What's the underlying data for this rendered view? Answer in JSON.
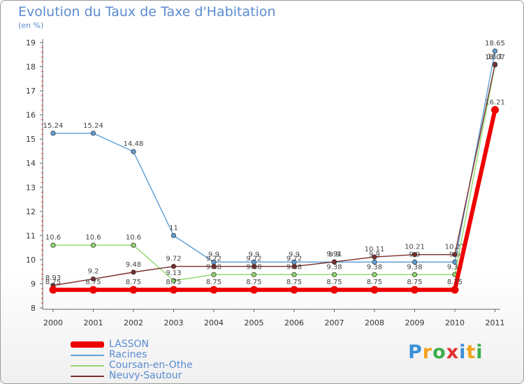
{
  "title": "Evolution du Taux de Taxe d'Habitation",
  "unit": "(en %)",
  "logo": {
    "text": "Proxiti",
    "letters": [
      "P",
      "r",
      "o",
      "x",
      "i",
      "t",
      "i"
    ],
    "colors": [
      "#3c8fd8",
      "#f4a21c",
      "#3cae4a",
      "#e23030",
      "#3c8fd8",
      "#f4a21c",
      "#3cae4a"
    ]
  },
  "chart_data": {
    "type": "line",
    "title": "Evolution du Taux de Taxe d'Habitation",
    "ylabel": "(en %)",
    "xlabel": "",
    "x": [
      "2000",
      "2001",
      "2002",
      "2003",
      "2004",
      "2005",
      "2006",
      "2007",
      "2008",
      "2009",
      "2010",
      "2011"
    ],
    "ylim": [
      8,
      19
    ],
    "yticks": [
      "8",
      "9",
      "10",
      "11",
      "12",
      "13",
      "14",
      "15",
      "16",
      "17",
      "18",
      "19"
    ],
    "grid": false,
    "legend": "bottom-left",
    "series": [
      {
        "name": "LASSON",
        "color": "#ee0000",
        "values": [
          8.75,
          8.75,
          8.75,
          8.75,
          8.75,
          8.75,
          8.75,
          8.75,
          8.75,
          8.75,
          8.75,
          16.21
        ],
        "labels": [
          "8.75",
          "8.75",
          "8.75",
          "8.75",
          "8.75",
          "8.75",
          "8.75",
          "8.75",
          "8.75",
          "8.75",
          "8.75",
          "16.21"
        ]
      },
      {
        "name": "Racines",
        "color": "#5d9fd6",
        "values": [
          15.24,
          15.24,
          14.48,
          11,
          9.9,
          9.9,
          9.9,
          9.9,
          9.9,
          9.9,
          9.9,
          18.65
        ],
        "labels": [
          "15.24",
          "15.24",
          "14.48",
          "11",
          "9.9",
          "9.9",
          "9.9",
          "9.9",
          "9.9",
          "9.9",
          "9.9",
          "18.65"
        ]
      },
      {
        "name": "Coursan-en-Othe",
        "color": "#8fd96a",
        "values": [
          10.6,
          10.6,
          10.6,
          9.13,
          9.38,
          9.38,
          9.38,
          9.38,
          9.38,
          9.38,
          9.38,
          18.07
        ],
        "labels": [
          "10.6",
          "10.6",
          "10.6",
          "9.13",
          "9.38",
          "9.38",
          "9.38",
          "9.38",
          "9.38",
          "9.38",
          "9.38",
          "18.07"
        ]
      },
      {
        "name": "Neuvy-Sautour",
        "color": "#7a2c2c",
        "values": [
          8.93,
          9.2,
          9.48,
          9.72,
          9.72,
          9.72,
          9.72,
          9.91,
          10.11,
          10.21,
          10.21,
          18.1
        ],
        "labels": [
          "8.93",
          "9.2",
          "9.48",
          "9.72",
          "9.72",
          "9.72",
          "9.72",
          "9.91",
          "10.11",
          "10.21",
          "10.21",
          "18.1"
        ]
      }
    ]
  }
}
